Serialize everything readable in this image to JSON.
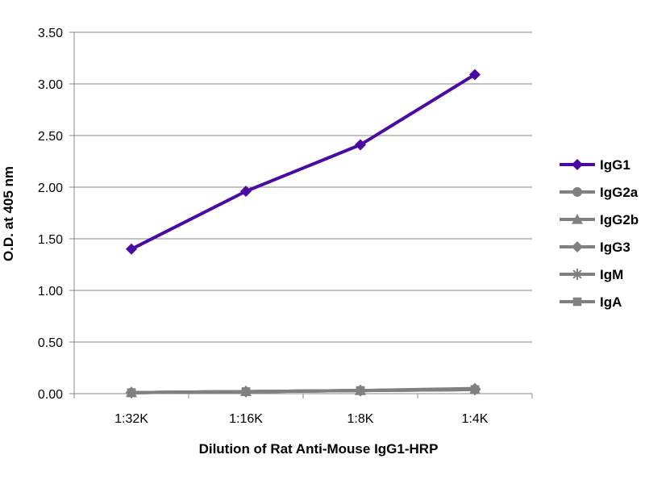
{
  "chart_data": {
    "type": "line",
    "title": "",
    "xlabel": "Dilution of Rat Anti-Mouse IgG1-HRP",
    "ylabel": "O.D. at 405 nm",
    "categories": [
      "1:32K",
      "1:16K",
      "1:8K",
      "1:4K"
    ],
    "ylim": [
      0,
      3.5
    ],
    "yticks": [
      "0.00",
      "0.50",
      "1.00",
      "1.50",
      "2.00",
      "2.50",
      "3.00",
      "3.50"
    ],
    "grid": true,
    "legend_position": "right",
    "series": [
      {
        "name": "IgG1",
        "values": [
          1.4,
          1.96,
          2.41,
          3.09
        ],
        "color": "#4b0aa1",
        "marker": "diamond"
      },
      {
        "name": "IgG2a",
        "values": [
          0.01,
          0.02,
          0.03,
          0.04
        ],
        "color": "#808080",
        "marker": "circle"
      },
      {
        "name": "IgG2b",
        "values": [
          0.01,
          0.02,
          0.03,
          0.04
        ],
        "color": "#808080",
        "marker": "triangle"
      },
      {
        "name": "IgG3",
        "values": [
          0.01,
          0.02,
          0.03,
          0.05
        ],
        "color": "#808080",
        "marker": "diamond"
      },
      {
        "name": "IgM",
        "values": [
          0.01,
          0.02,
          0.03,
          0.04
        ],
        "color": "#808080",
        "marker": "star"
      },
      {
        "name": "IgA",
        "values": [
          0.01,
          0.02,
          0.03,
          0.04
        ],
        "color": "#808080",
        "marker": "square"
      }
    ]
  }
}
